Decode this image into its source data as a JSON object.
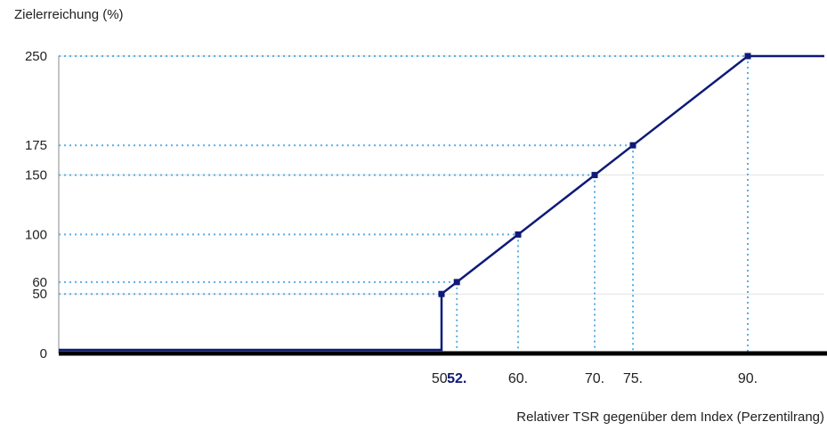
{
  "chart_data": {
    "type": "line",
    "ylabel": "Zielerreichung (%)",
    "xlabel": "Relativer TSR gegenüber dem Index (Perzentilrang)",
    "xlim": [
      0,
      100
    ],
    "ylim": [
      0,
      250
    ],
    "y_ticks": [
      "0",
      "50",
      "60",
      "100",
      "150",
      "175",
      "250"
    ],
    "x_ticks": [
      {
        "value": 50,
        "label": "50.",
        "highlight": false
      },
      {
        "value": 52,
        "label": "52.",
        "highlight": true
      },
      {
        "value": 60,
        "label": "60.",
        "highlight": false
      },
      {
        "value": 70,
        "label": "70.",
        "highlight": false
      },
      {
        "value": 75,
        "label": "75.",
        "highlight": false
      },
      {
        "value": 90,
        "label": "90.",
        "highlight": false
      }
    ],
    "series": [
      {
        "x": [
          0,
          50,
          50,
          52,
          60,
          70,
          75,
          90,
          100
        ],
        "y": [
          0,
          0,
          50,
          60,
          100,
          150,
          175,
          250,
          250
        ]
      }
    ],
    "markers": [
      {
        "x": 50,
        "y": 50
      },
      {
        "x": 52,
        "y": 60
      },
      {
        "x": 60,
        "y": 100
      },
      {
        "x": 70,
        "y": 150
      },
      {
        "x": 75,
        "y": 175
      },
      {
        "x": 90,
        "y": 250
      }
    ],
    "gridlines": [
      50,
      150,
      250
    ],
    "colors": {
      "line": "#0f1a78",
      "guide": "#5aaee6",
      "grid": "#e2e2e2",
      "axis": "#000000",
      "highlight_tick": "#0f1a78"
    }
  }
}
